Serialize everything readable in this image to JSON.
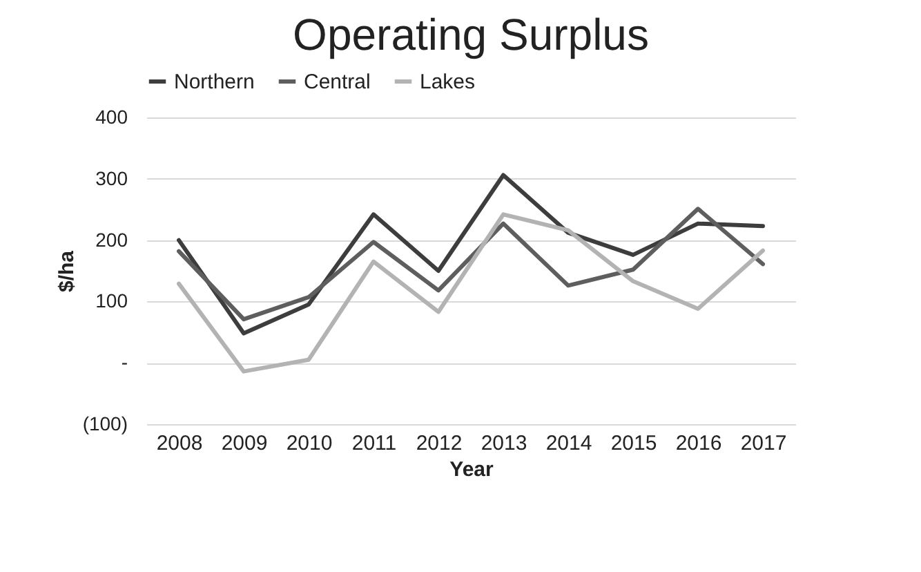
{
  "chart_data": {
    "type": "line",
    "title": "Operating Surplus",
    "xlabel": "Year",
    "ylabel": "$/ha",
    "categories": [
      "2008",
      "2009",
      "2010",
      "2011",
      "2012",
      "2013",
      "2014",
      "2015",
      "2016",
      "2017"
    ],
    "series": [
      {
        "name": "Northern",
        "color": "#3d3d3d",
        "values": [
          200,
          48,
          95,
          242,
          150,
          306,
          212,
          176,
          227,
          223
        ]
      },
      {
        "name": "Central",
        "color": "#5e5e5e",
        "values": [
          182,
          71,
          107,
          197,
          118,
          227,
          126,
          152,
          251,
          161
        ]
      },
      {
        "name": "Lakes",
        "color": "#b3b3b3",
        "values": [
          129,
          -14,
          5,
          165,
          83,
          242,
          216,
          133,
          88,
          183
        ]
      }
    ],
    "ylim": [
      -100,
      400
    ],
    "yticks": [
      {
        "value": -100,
        "label": "(100)"
      },
      {
        "value": 0,
        "label": "-"
      },
      100,
      200,
      300,
      400
    ],
    "grid": "y",
    "legend": "top",
    "marker": "none",
    "line_style": "solid"
  }
}
